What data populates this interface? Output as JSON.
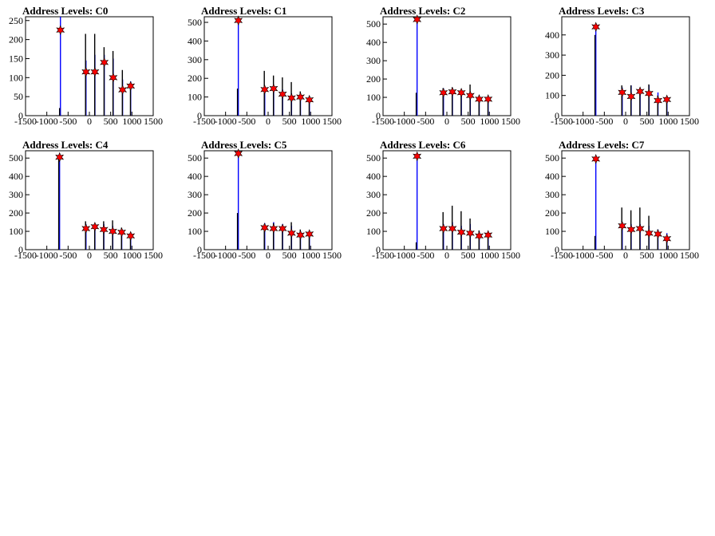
{
  "chart_data": [
    {
      "type": "bar",
      "title": "Address Levels: C0",
      "xlim": [
        -1500,
        1500
      ],
      "ylim": [
        0,
        260
      ],
      "xticks": [
        -1500,
        -1000,
        -500,
        0,
        500,
        1000,
        1500
      ],
      "xtick_labels": [
        "-1500",
        "-1000",
        "-500",
        "0",
        "500",
        "1000",
        "1500"
      ],
      "yticks": [
        0,
        50,
        100,
        150,
        200,
        250
      ],
      "ytick_labels": [
        "0",
        "50",
        "100",
        "150",
        "200",
        "250"
      ],
      "series": [
        {
          "color": "#0000ff",
          "x": [
            -680,
            -80,
            130,
            350,
            560,
            780,
            970
          ],
          "values": [
            260,
            145,
            160,
            160,
            150,
            95,
            90
          ]
        },
        {
          "color": "#000000",
          "x": [
            -700,
            -90,
            125,
            345,
            555,
            775,
            965
          ],
          "values": [
            20,
            215,
            215,
            180,
            170,
            120,
            80
          ]
        }
      ],
      "peaks": {
        "x": [
          -680,
          -80,
          130,
          350,
          560,
          780,
          970
        ],
        "values": [
          225,
          115,
          115,
          140,
          100,
          68,
          78
        ],
        "color": "#ff0000"
      }
    },
    {
      "type": "bar",
      "title": "Address Levels: C1",
      "xlim": [
        -1500,
        1500
      ],
      "ylim": [
        0,
        530
      ],
      "xticks": [
        -1500,
        -1000,
        -500,
        0,
        500,
        1000,
        1500
      ],
      "xtick_labels": [
        "-1500",
        "-1000",
        "-500",
        "0",
        "500",
        "1000",
        "1500"
      ],
      "yticks": [
        0,
        100,
        200,
        300,
        400,
        500
      ],
      "ytick_labels": [
        "0",
        "100",
        "200",
        "300",
        "400",
        "500"
      ],
      "series": [
        {
          "color": "#0000ff",
          "x": [
            -700,
            -80,
            130,
            340,
            550,
            760,
            970
          ],
          "values": [
            520,
            150,
            155,
            140,
            120,
            110,
            90
          ]
        },
        {
          "color": "#000000",
          "x": [
            -720,
            -90,
            125,
            335,
            545,
            755,
            965
          ],
          "values": [
            145,
            240,
            215,
            205,
            180,
            130,
            100
          ]
        }
      ],
      "peaks": {
        "x": [
          -700,
          -80,
          130,
          340,
          550,
          760,
          970
        ],
        "values": [
          510,
          140,
          145,
          115,
          95,
          100,
          85
        ],
        "color": "#ff0000"
      }
    },
    {
      "type": "bar",
      "title": "Address Levels: C2",
      "xlim": [
        -1500,
        1500
      ],
      "ylim": [
        0,
        540
      ],
      "xticks": [
        -1500,
        -1000,
        -500,
        0,
        500,
        1000,
        1500
      ],
      "xtick_labels": [
        "-1500",
        "-1000",
        "-500",
        "0",
        "500",
        "1000",
        "1500"
      ],
      "yticks": [
        0,
        100,
        200,
        300,
        400,
        500
      ],
      "ytick_labels": [
        "0",
        "100",
        "200",
        "300",
        "400",
        "500"
      ],
      "series": [
        {
          "color": "#0000ff",
          "x": [
            -700,
            -80,
            130,
            340,
            550,
            760,
            970
          ],
          "values": [
            535,
            150,
            150,
            140,
            130,
            100,
            95
          ]
        },
        {
          "color": "#000000",
          "x": [
            -720,
            -90,
            125,
            335,
            545,
            755,
            965
          ],
          "values": [
            125,
            150,
            155,
            140,
            170,
            110,
            90
          ]
        }
      ],
      "peaks": {
        "x": [
          -700,
          -80,
          130,
          340,
          550,
          760,
          970
        ],
        "values": [
          525,
          125,
          130,
          125,
          110,
          90,
          90
        ],
        "color": "#ff0000"
      }
    },
    {
      "type": "bar",
      "title": "Address Levels: C3",
      "xlim": [
        -1500,
        1500
      ],
      "ylim": [
        0,
        490
      ],
      "xticks": [
        -1500,
        -1000,
        -500,
        0,
        500,
        1000,
        1500
      ],
      "xtick_labels": [
        "-1500",
        "-1000",
        "-500",
        "0",
        "500",
        "1000",
        "1500"
      ],
      "yticks": [
        0,
        100,
        200,
        300,
        400
      ],
      "ytick_labels": [
        "0",
        "100",
        "200",
        "300",
        "400"
      ],
      "series": [
        {
          "color": "#0000ff",
          "x": [
            -700,
            -80,
            130,
            340,
            550,
            760,
            970
          ],
          "values": [
            450,
            140,
            150,
            130,
            150,
            115,
            95
          ]
        },
        {
          "color": "#000000",
          "x": [
            -720,
            -90,
            125,
            335,
            545,
            755,
            965
          ],
          "values": [
            400,
            150,
            150,
            120,
            155,
            100,
            80
          ]
        }
      ],
      "peaks": {
        "x": [
          -700,
          -80,
          130,
          340,
          550,
          760,
          970
        ],
        "values": [
          440,
          115,
          95,
          120,
          110,
          75,
          80
        ],
        "color": "#ff0000"
      }
    },
    {
      "type": "bar",
      "title": "Address Levels: C4",
      "xlim": [
        -1500,
        1500
      ],
      "ylim": [
        0,
        540
      ],
      "xticks": [
        -1500,
        -1000,
        -500,
        0,
        500,
        1000,
        1500
      ],
      "xtick_labels": [
        "-1500",
        "-1000",
        "-500",
        "0",
        "500",
        "1000",
        "1500"
      ],
      "yticks": [
        0,
        100,
        200,
        300,
        400,
        500
      ],
      "ytick_labels": [
        "0",
        "100",
        "200",
        "300",
        "400",
        "500"
      ],
      "series": [
        {
          "color": "#0000ff",
          "x": [
            -700,
            -80,
            130,
            340,
            550,
            760,
            970
          ],
          "values": [
            520,
            140,
            140,
            140,
            130,
            110,
            95
          ]
        },
        {
          "color": "#000000",
          "x": [
            -720,
            -90,
            125,
            335,
            545,
            755,
            965
          ],
          "values": [
            510,
            155,
            125,
            155,
            160,
            120,
            90
          ]
        }
      ],
      "peaks": {
        "x": [
          -700,
          -80,
          130,
          340,
          550,
          760,
          970
        ],
        "values": [
          505,
          115,
          125,
          110,
          100,
          95,
          75
        ],
        "color": "#ff0000"
      }
    },
    {
      "type": "bar",
      "title": "Address Levels: C5",
      "xlim": [
        -1500,
        1500
      ],
      "ylim": [
        0,
        540
      ],
      "xticks": [
        -1500,
        -1000,
        -500,
        0,
        500,
        1000,
        1500
      ],
      "xtick_labels": [
        "-1500",
        "-1000",
        "-500",
        "0",
        "500",
        "1000",
        "1500"
      ],
      "yticks": [
        0,
        100,
        200,
        300,
        400,
        500
      ],
      "ytick_labels": [
        "0",
        "100",
        "200",
        "300",
        "400",
        "500"
      ],
      "series": [
        {
          "color": "#0000ff",
          "x": [
            -700,
            -80,
            130,
            340,
            550,
            760,
            970
          ],
          "values": [
            535,
            145,
            150,
            140,
            130,
            100,
            95
          ]
        },
        {
          "color": "#000000",
          "x": [
            -720,
            -90,
            125,
            335,
            545,
            755,
            965
          ],
          "values": [
            200,
            140,
            145,
            130,
            150,
            110,
            90
          ]
        }
      ],
      "peaks": {
        "x": [
          -700,
          -80,
          130,
          340,
          550,
          760,
          970
        ],
        "values": [
          525,
          120,
          115,
          115,
          90,
          80,
          85
        ],
        "color": "#ff0000"
      }
    },
    {
      "type": "bar",
      "title": "Address Levels: C6",
      "xlim": [
        -1500,
        1500
      ],
      "ylim": [
        0,
        540
      ],
      "xticks": [
        -1500,
        -1000,
        -500,
        0,
        500,
        1000,
        1500
      ],
      "xtick_labels": [
        "-1500",
        "-1000",
        "-500",
        "0",
        "500",
        "1000",
        "1500"
      ],
      "yticks": [
        0,
        100,
        200,
        300,
        400,
        500
      ],
      "ytick_labels": [
        "0",
        "100",
        "200",
        "300",
        "400",
        "500"
      ],
      "series": [
        {
          "color": "#0000ff",
          "x": [
            -700,
            -80,
            130,
            340,
            550,
            760,
            970
          ],
          "values": [
            520,
            140,
            150,
            130,
            140,
            100,
            95
          ]
        },
        {
          "color": "#000000",
          "x": [
            -720,
            -90,
            125,
            335,
            545,
            755,
            965
          ],
          "values": [
            40,
            205,
            240,
            210,
            170,
            105,
            85
          ]
        }
      ],
      "peaks": {
        "x": [
          -700,
          -80,
          130,
          340,
          550,
          760,
          970
        ],
        "values": [
          510,
          115,
          115,
          95,
          90,
          75,
          80
        ],
        "color": "#ff0000"
      }
    },
    {
      "type": "bar",
      "title": "Address Levels: C7",
      "xlim": [
        -1500,
        1500
      ],
      "ylim": [
        0,
        540
      ],
      "xticks": [
        -1500,
        -1000,
        -500,
        0,
        500,
        1000,
        1500
      ],
      "xtick_labels": [
        "-1500",
        "-1000",
        "-500",
        "0",
        "500",
        "1000",
        "1500"
      ],
      "yticks": [
        0,
        100,
        200,
        300,
        400,
        500
      ],
      "ytick_labels": [
        "0",
        "100",
        "200",
        "300",
        "400",
        "500"
      ],
      "series": [
        {
          "color": "#0000ff",
          "x": [
            -700,
            -80,
            130,
            340,
            550,
            760,
            970
          ],
          "values": [
            515,
            140,
            140,
            140,
            130,
            110,
            90
          ]
        },
        {
          "color": "#000000",
          "x": [
            -720,
            -90,
            125,
            335,
            545,
            755,
            965
          ],
          "values": [
            75,
            230,
            215,
            230,
            185,
            110,
            70
          ]
        }
      ],
      "peaks": {
        "x": [
          -700,
          -80,
          130,
          340,
          550,
          760,
          970
        ],
        "values": [
          495,
          130,
          110,
          115,
          90,
          85,
          60
        ],
        "color": "#ff0000"
      }
    }
  ]
}
